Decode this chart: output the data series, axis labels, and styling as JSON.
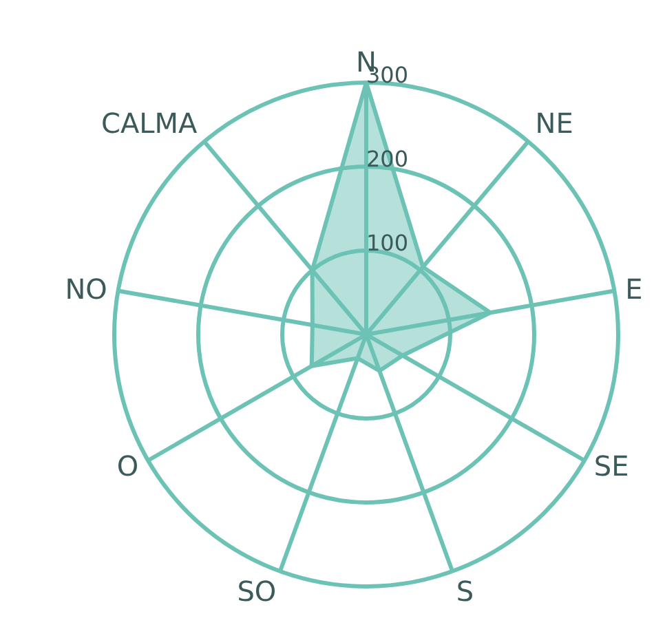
{
  "chart_data": {
    "type": "radar",
    "categories": [
      "N",
      "NE",
      "E",
      "SE",
      "S",
      "SO",
      "O",
      "NO",
      "CALMA"
    ],
    "series": [
      {
        "color": "#6cc3b5",
        "values": [
          300,
          105,
          150,
          50,
          46,
          30,
          75,
          65,
          100
        ]
      }
    ],
    "ylim": [
      0,
      300
    ],
    "yticks": [
      100,
      200,
      300
    ],
    "grid": true,
    "marker": "none"
  }
}
